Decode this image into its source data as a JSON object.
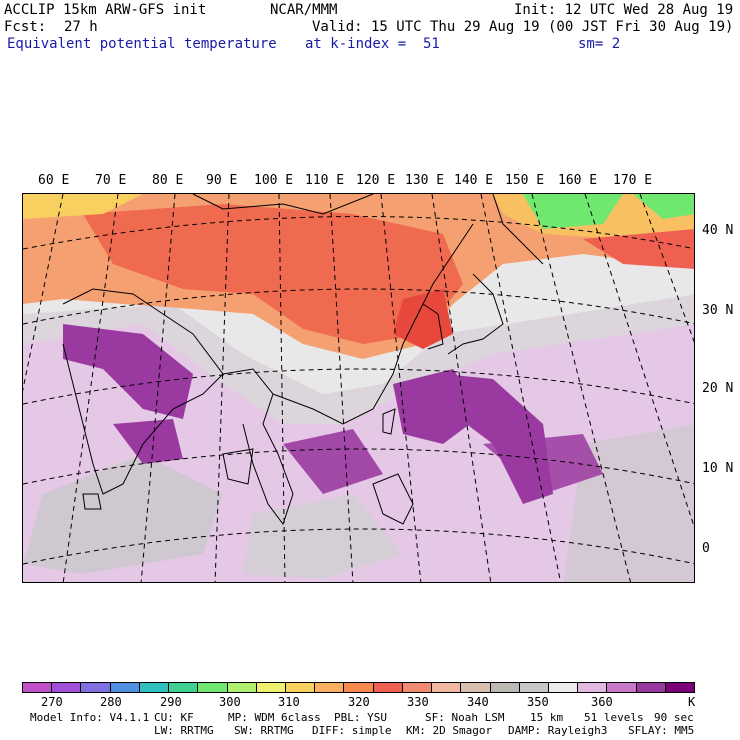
{
  "header": {
    "model": "ACCLIP 15km ARW-GFS init",
    "org": "NCAR/MMM",
    "init": "Init: 12 UTC Wed 28 Aug 19",
    "fcst_label": "Fcst:",
    "fcst_value": "27 h",
    "valid": "Valid: 15 UTC Thu 29 Aug 19 (00 JST Fri 30 Aug 19)",
    "field": "Equivalent potential temperature",
    "level": "at k-index =  51",
    "smooth": "sm= 2"
  },
  "map": {
    "longitude_labels": [
      "60 E",
      "70 E",
      "80 E",
      "90 E",
      "100 E",
      "110 E",
      "120 E",
      "130 E",
      "140 E",
      "150 E",
      "160 E",
      "170 E"
    ],
    "latitude_labels": [
      "40 N",
      "30 N",
      "20 N",
      "10 N",
      "0"
    ]
  },
  "colorbar": {
    "colors": [
      "#c050c8",
      "#a050d8",
      "#8070e0",
      "#5090e0",
      "#30c0c0",
      "#40d090",
      "#70e870",
      "#b0f070",
      "#f0f070",
      "#f8d060",
      "#f8b060",
      "#f88a50",
      "#f06050",
      "#f08a70",
      "#f0b8a0",
      "#d8c0b0",
      "#bcb8b4",
      "#c8c8c8",
      "#ececec",
      "#e0b8e0",
      "#c878c8",
      "#9a3aa0",
      "#7a007a"
    ],
    "ticks": [
      "270",
      "280",
      "290",
      "300",
      "310",
      "320",
      "330",
      "340",
      "350",
      "360"
    ],
    "unit": "K"
  },
  "footer": {
    "model_info": "Model Info: V4.1.1",
    "cu": "CU: KF",
    "mp": "MP: WDM 6class",
    "pbl": "PBL: YSU",
    "sf": "SF: Noah LSM",
    "res": "15 km",
    "levels": "51 levels",
    "dt": "90 sec",
    "lw": "LW: RRTMG",
    "sw": "SW: RRTMG",
    "diff": "DIFF: simple",
    "km": "KM: 2D Smagor",
    "damp": "DAMP: Rayleigh3",
    "sflay": "SFLAY: MM5"
  },
  "colors": {
    "title_blue": "#1a1aa8"
  }
}
